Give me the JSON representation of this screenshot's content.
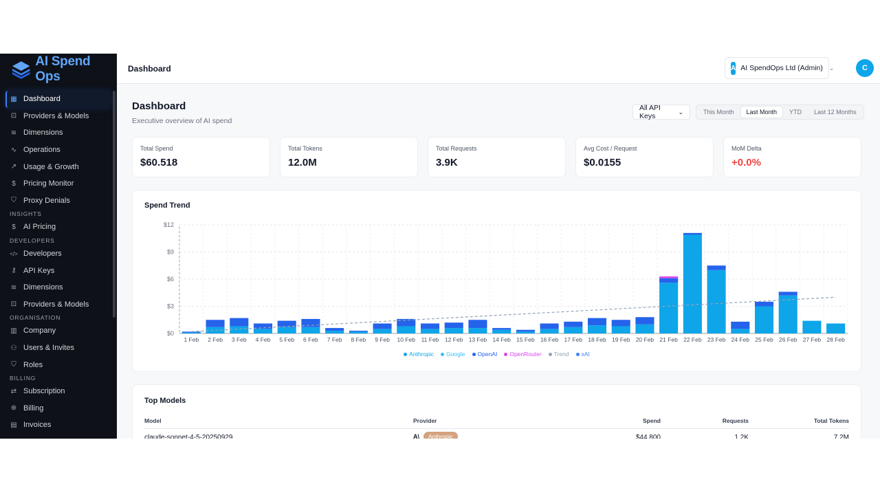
{
  "app": {
    "name": "AI Spend Ops",
    "breadcrumb": "Dashboard"
  },
  "org": {
    "badge": "A",
    "name": "AI SpendOps Ltd (Admin)"
  },
  "user": {
    "initial": "C"
  },
  "colors": {
    "anthropic": "#0ea5e9",
    "google": "#38bdf8",
    "openai": "#2563eb",
    "openrouter": "#d946ef",
    "trend": "#94a3b8",
    "xai": "#3b82f6",
    "negative": "#ef4444"
  },
  "sidebar": {
    "items": [
      {
        "label": "Dashboard",
        "icon": "grid-icon",
        "active": true
      },
      {
        "label": "Providers & Models",
        "icon": "chip-icon"
      },
      {
        "label": "Dimensions",
        "icon": "layers-icon"
      },
      {
        "label": "Operations",
        "icon": "activity-icon"
      },
      {
        "label": "Usage & Growth",
        "icon": "trending-up-icon"
      },
      {
        "label": "Pricing Monitor",
        "icon": "dollar-icon"
      },
      {
        "label": "Proxy Denials",
        "icon": "shield-icon"
      }
    ],
    "sections": {
      "insights": {
        "title": "INSIGHTS",
        "items": [
          {
            "label": "AI Pricing",
            "icon": "dollar-icon"
          }
        ]
      },
      "developers": {
        "title": "DEVELOPERS",
        "items": [
          {
            "label": "Developers",
            "icon": "code-icon"
          },
          {
            "label": "API Keys",
            "icon": "key-icon"
          },
          {
            "label": "Dimensions",
            "icon": "layers-icon"
          },
          {
            "label": "Providers & Models",
            "icon": "chip-icon"
          }
        ]
      },
      "organisation": {
        "title": "ORGANISATION",
        "items": [
          {
            "label": "Company",
            "icon": "building-icon"
          },
          {
            "label": "Users & Invites",
            "icon": "users-icon"
          },
          {
            "label": "Roles",
            "icon": "shield-icon"
          }
        ]
      },
      "billing": {
        "title": "BILLING",
        "items": [
          {
            "label": "Subscription",
            "icon": "repeat-icon"
          },
          {
            "label": "Billing",
            "icon": "cart-icon"
          },
          {
            "label": "Invoices",
            "icon": "file-icon"
          }
        ]
      }
    }
  },
  "page": {
    "title": "Dashboard",
    "subtitle": "Executive overview of AI spend",
    "keys_filter": "All API Keys",
    "ranges": [
      "This Month",
      "Last Month",
      "YTD",
      "Last 12 Months"
    ],
    "selected_range": "Last Month"
  },
  "kpis": [
    {
      "label": "Total Spend",
      "value": "$60.518"
    },
    {
      "label": "Total Tokens",
      "value": "12.0M"
    },
    {
      "label": "Total Requests",
      "value": "3.9K"
    },
    {
      "label": "Avg Cost / Request",
      "value": "$0.0155"
    },
    {
      "label": "MoM Delta",
      "value": "+0.0%",
      "negative": true
    }
  ],
  "spend_trend": {
    "title": "Spend Trend"
  },
  "chart_data": {
    "type": "bar",
    "stacked": true,
    "categories": [
      "1 Feb",
      "2 Feb",
      "3 Feb",
      "4 Feb",
      "5 Feb",
      "6 Feb",
      "7 Feb",
      "8 Feb",
      "9 Feb",
      "10 Feb",
      "11 Feb",
      "12 Feb",
      "13 Feb",
      "14 Feb",
      "15 Feb",
      "16 Feb",
      "17 Feb",
      "18 Feb",
      "19 Feb",
      "20 Feb",
      "21 Feb",
      "22 Feb",
      "23 Feb",
      "24 Feb",
      "25 Feb",
      "26 Feb",
      "27 Feb",
      "28 Feb"
    ],
    "series": [
      {
        "name": "Anthropic",
        "values": [
          0.1,
          0.7,
          0.8,
          0.5,
          0.7,
          0.7,
          0.3,
          0.2,
          0.5,
          0.8,
          0.5,
          0.6,
          0.6,
          0.4,
          0.2,
          0.5,
          0.7,
          0.9,
          0.8,
          1.0,
          5.6,
          10.9,
          7.0,
          0.5,
          3.0,
          4.2,
          1.4,
          1.1
        ]
      },
      {
        "name": "Google",
        "values": [
          0,
          0,
          0,
          0,
          0,
          0,
          0,
          0,
          0,
          0,
          0,
          0,
          0,
          0,
          0,
          0,
          0,
          0,
          0,
          0,
          0,
          0,
          0,
          0,
          0,
          0,
          0,
          0
        ]
      },
      {
        "name": "OpenAI",
        "values": [
          0.1,
          0.8,
          0.9,
          0.6,
          0.7,
          0.9,
          0.3,
          0.1,
          0.6,
          0.8,
          0.6,
          0.6,
          0.9,
          0.2,
          0.2,
          0.6,
          0.6,
          0.8,
          0.7,
          0.8,
          0.5,
          0.2,
          0.5,
          0.8,
          0.5,
          0.4,
          0,
          0
        ]
      },
      {
        "name": "OpenRouter",
        "values": [
          0,
          0,
          0,
          0,
          0,
          0,
          0,
          0,
          0,
          0,
          0,
          0,
          0,
          0,
          0,
          0,
          0,
          0,
          0,
          0,
          0.2,
          0,
          0,
          0,
          0,
          0,
          0,
          0
        ]
      },
      {
        "name": "xAI",
        "values": [
          0,
          0,
          0,
          0,
          0,
          0,
          0,
          0,
          0,
          0,
          0,
          0,
          0,
          0,
          0,
          0,
          0,
          0,
          0,
          0,
          0,
          0,
          0,
          0,
          0,
          0,
          0,
          0
        ]
      }
    ],
    "trend": {
      "name": "Trend",
      "start": 0.2,
      "end": 4.0
    },
    "yticks": [
      "$0",
      "$3",
      "$6",
      "$9",
      "$12"
    ],
    "ylim": [
      0,
      12
    ],
    "grid": true,
    "legend": "bottom"
  },
  "top_models": {
    "title": "Top Models",
    "columns": [
      "Model",
      "Provider",
      "Spend",
      "Requests",
      "Total Tokens"
    ],
    "rows": [
      {
        "model": "claude-sonnet-4-5-20250929",
        "provider": "Anthropic",
        "spend": "$44.800",
        "requests": "1.2K",
        "tokens": "7.2M"
      }
    ]
  }
}
